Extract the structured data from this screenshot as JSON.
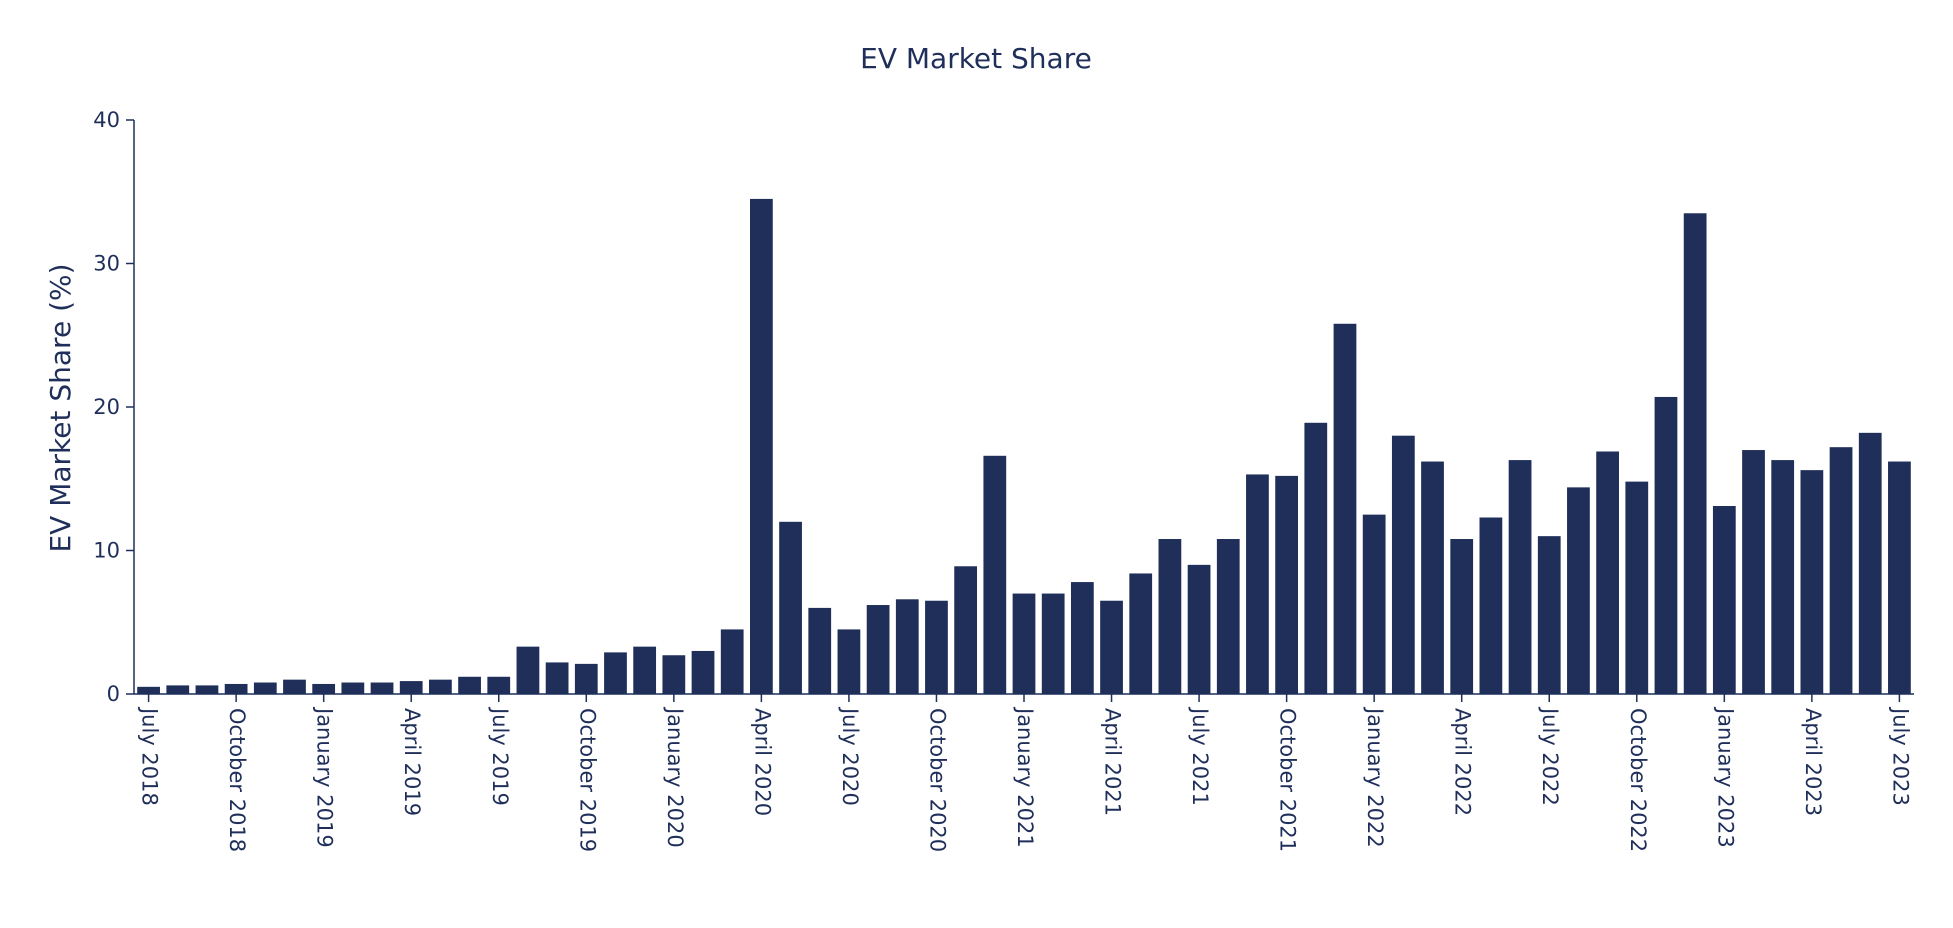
{
  "chart_data": {
    "type": "bar",
    "title": "EV Market Share",
    "xlabel": "",
    "ylabel": "EV Market Share (%)",
    "ylim": [
      0,
      40
    ],
    "yticks": [
      0,
      10,
      20,
      30,
      40
    ],
    "bar_color": "#1f2f5a",
    "grid": false,
    "categories": [
      "July 2018",
      "August 2018",
      "September 2018",
      "October 2018",
      "November 2018",
      "December 2018",
      "January 2019",
      "February 2019",
      "March 2019",
      "April 2019",
      "May 2019",
      "June 2019",
      "July 2019",
      "August 2019",
      "September 2019",
      "October 2019",
      "November 2019",
      "December 2019",
      "January 2020",
      "February 2020",
      "March 2020",
      "April 2020",
      "May 2020",
      "June 2020",
      "July 2020",
      "August 2020",
      "September 2020",
      "October 2020",
      "November 2020",
      "December 2020",
      "January 2021",
      "February 2021",
      "March 2021",
      "April 2021",
      "May 2021",
      "June 2021",
      "July 2021",
      "August 2021",
      "September 2021",
      "October 2021",
      "November 2021",
      "December 2021",
      "January 2022",
      "February 2022",
      "March 2022",
      "April 2022",
      "May 2022",
      "June 2022",
      "July 2022",
      "August 2022",
      "September 2022",
      "October 2022",
      "November 2022",
      "December 2022",
      "January 2023",
      "February 2023",
      "March 2023",
      "April 2023",
      "May 2023",
      "June 2023",
      "July 2023"
    ],
    "values": [
      0.5,
      0.6,
      0.6,
      0.7,
      0.8,
      1.0,
      0.7,
      0.8,
      0.8,
      0.9,
      1.0,
      1.2,
      1.2,
      3.3,
      2.2,
      2.1,
      2.9,
      3.3,
      2.7,
      3.0,
      4.5,
      34.5,
      12.0,
      6.0,
      4.5,
      6.2,
      6.6,
      6.5,
      8.9,
      16.6,
      7.0,
      7.0,
      7.8,
      6.5,
      8.4,
      10.8,
      9.0,
      10.8,
      15.3,
      15.2,
      18.9,
      25.8,
      12.5,
      18.0,
      16.2,
      10.8,
      12.3,
      16.3,
      11.0,
      14.4,
      16.9,
      14.8,
      20.7,
      33.5,
      13.1,
      17.0,
      16.3,
      15.6,
      17.2,
      18.2,
      16.2
    ],
    "tick_labels": [
      "July 2018",
      "October 2018",
      "January 2019",
      "April 2019",
      "July 2019",
      "October 2019",
      "January 2020",
      "April 2020",
      "July 2020",
      "October 2020",
      "January 2021",
      "April 2021",
      "July 2021",
      "October 2021",
      "January 2022",
      "April 2022",
      "July 2022",
      "October 2022",
      "January 2023",
      "April 2023",
      "July 2023"
    ]
  }
}
